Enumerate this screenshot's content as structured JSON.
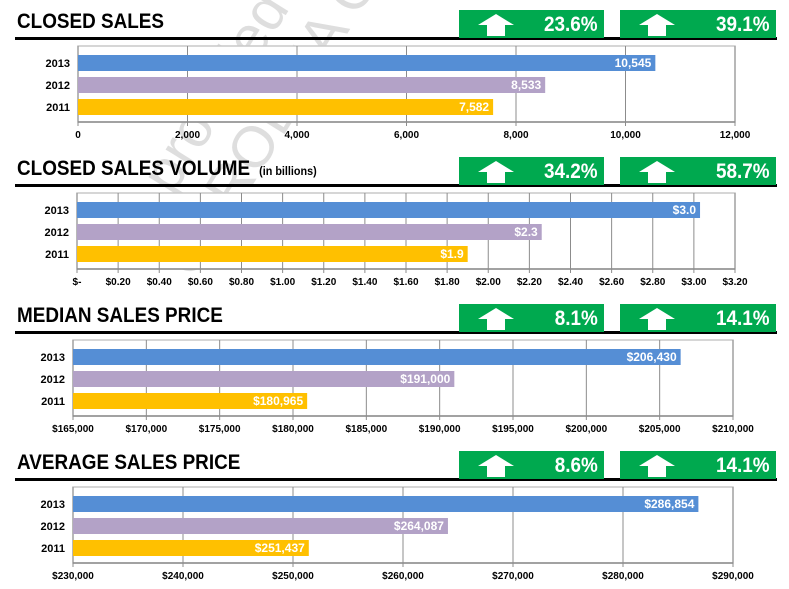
{
  "watermark": {
    "line1": "provided by",
    "line2": "CAROLINA ONE"
  },
  "colors": {
    "2013": "#558ed5",
    "2012": "#b3a2c7",
    "2011": "#ffc000",
    "badge": "#00a94f"
  },
  "sections": [
    {
      "title": "CLOSED SALES",
      "subtitle": "",
      "badges": [
        {
          "icon": "arrow-up-icon",
          "value": "23.6%"
        },
        {
          "icon": "arrow-up-icon",
          "value": "39.1%"
        }
      ]
    },
    {
      "title": "CLOSED SALES VOLUME",
      "subtitle": "(in billions)",
      "badges": [
        {
          "icon": "arrow-up-icon",
          "value": "34.2%"
        },
        {
          "icon": "arrow-up-icon",
          "value": "58.7%"
        }
      ]
    },
    {
      "title": "MEDIAN SALES PRICE",
      "subtitle": "",
      "badges": [
        {
          "icon": "arrow-up-icon",
          "value": "8.1%"
        },
        {
          "icon": "arrow-up-icon",
          "value": "14.1%"
        }
      ]
    },
    {
      "title": "AVERAGE SALES PRICE",
      "subtitle": "",
      "badges": [
        {
          "icon": "arrow-up-icon",
          "value": "8.6%"
        },
        {
          "icon": "arrow-up-icon",
          "value": "14.1%"
        }
      ]
    }
  ],
  "chart_data": [
    {
      "type": "bar",
      "orientation": "horizontal",
      "categories": [
        "2013",
        "2012",
        "2011"
      ],
      "values": [
        10545,
        8533,
        7582
      ],
      "labels": [
        "10,545",
        "8,533",
        "7,582"
      ],
      "xlim": [
        0,
        12000
      ],
      "ticks": [
        "0",
        "2,000",
        "4,000",
        "6,000",
        "8,000",
        "10,000",
        "12,000"
      ],
      "grid": true
    },
    {
      "type": "bar",
      "orientation": "horizontal",
      "categories": [
        "2013",
        "2012",
        "2011"
      ],
      "values": [
        3.03,
        2.26,
        1.9
      ],
      "labels": [
        "$3.0",
        "$2.3",
        "$1.9"
      ],
      "xlim": [
        0,
        3.2
      ],
      "ticks": [
        "$-",
        "$0.20",
        "$0.40",
        "$0.60",
        "$0.80",
        "$1.00",
        "$1.20",
        "$1.40",
        "$1.60",
        "$1.80",
        "$2.00",
        "$2.20",
        "$2.40",
        "$2.60",
        "$2.80",
        "$3.00",
        "$3.20"
      ],
      "grid": true
    },
    {
      "type": "bar",
      "orientation": "horizontal",
      "categories": [
        "2013",
        "2012",
        "2011"
      ],
      "values": [
        206430,
        191000,
        180965
      ],
      "labels": [
        "$206,430",
        "$191,000",
        "$180,965"
      ],
      "xlim": [
        165000,
        210000
      ],
      "ticks": [
        "$165,000",
        "$170,000",
        "$175,000",
        "$180,000",
        "$185,000",
        "$190,000",
        "$195,000",
        "$200,000",
        "$205,000",
        "$210,000"
      ],
      "grid": true
    },
    {
      "type": "bar",
      "orientation": "horizontal",
      "categories": [
        "2013",
        "2012",
        "2011"
      ],
      "values": [
        286854,
        264087,
        251437
      ],
      "labels": [
        "$286,854",
        "$264,087",
        "$251,437"
      ],
      "xlim": [
        230000,
        290000
      ],
      "ticks": [
        "$230,000",
        "$240,000",
        "$250,000",
        "$260,000",
        "$270,000",
        "$280,000",
        "$290,000"
      ],
      "grid": true
    }
  ]
}
